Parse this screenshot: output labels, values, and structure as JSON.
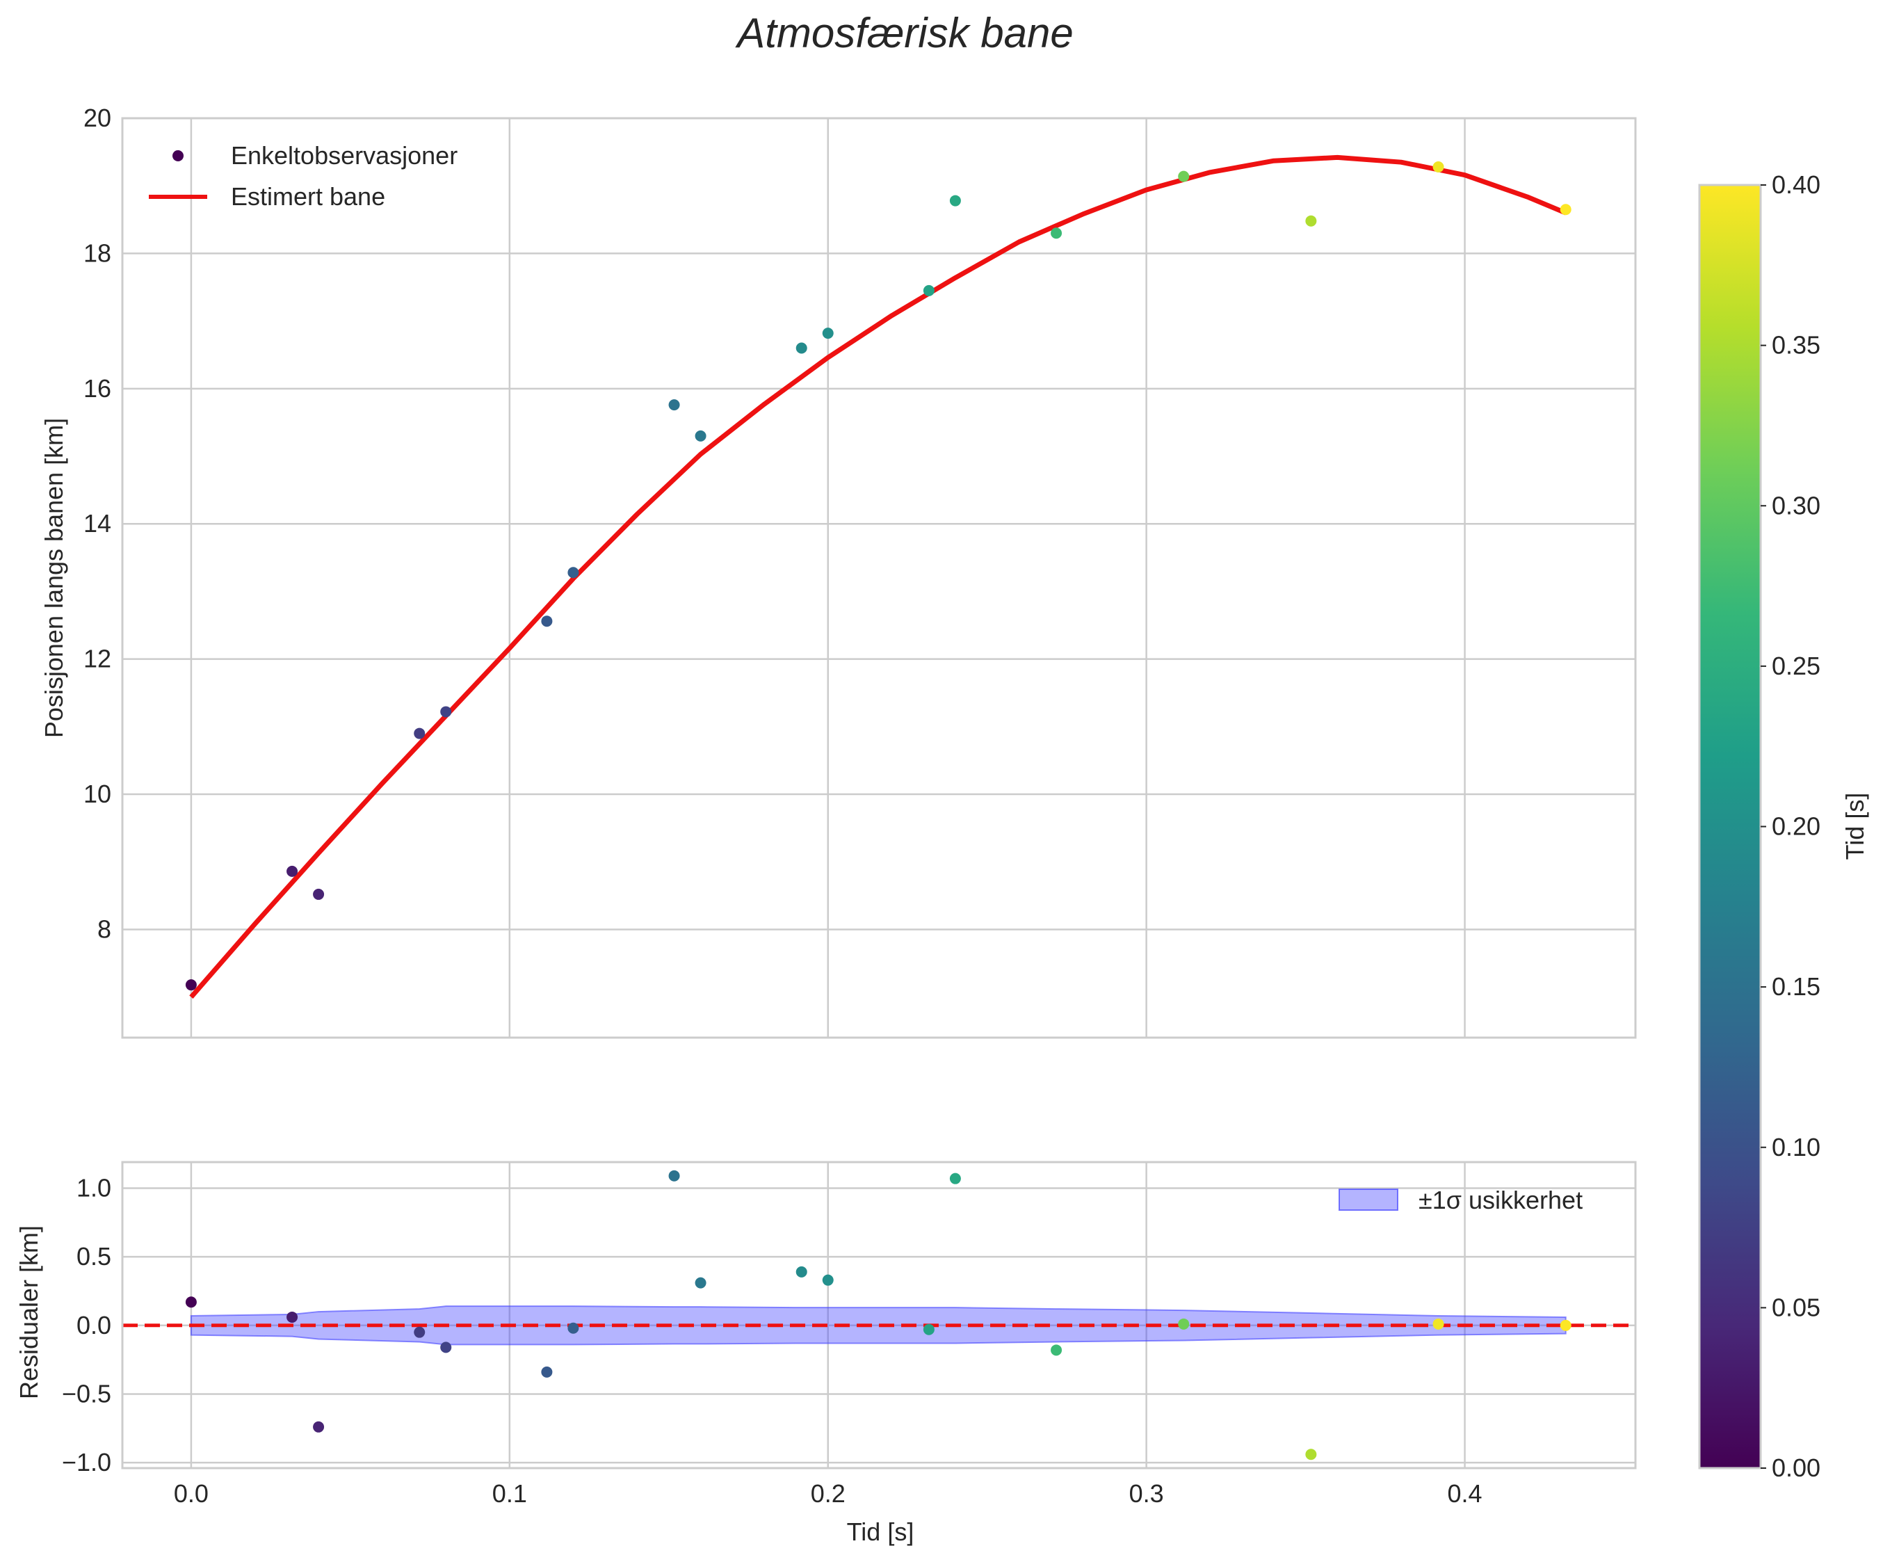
{
  "title": "Atmosfærisk bane",
  "chart_data": [
    {
      "type": "scatter",
      "panel": "main",
      "xlabel": "",
      "ylabel": "Posisjonen langs banen [km]",
      "xlim": [
        -0.0216,
        0.4536
      ],
      "ylim": [
        6.4,
        20.0
      ],
      "yticks": [
        8,
        10,
        12,
        14,
        16,
        18,
        20
      ],
      "ytick_labels": [
        "8",
        "10",
        "12",
        "14",
        "16",
        "18",
        "20"
      ],
      "grid": true,
      "legend_position": "top-left",
      "series": [
        {
          "name": "Enkeltobservasjoner",
          "kind": "scatter",
          "colored_by": "Tid [s]",
          "x": [
            0.0,
            0.0317,
            0.04,
            0.0717,
            0.08,
            0.1117,
            0.12,
            0.1517,
            0.16,
            0.1917,
            0.2,
            0.2317,
            0.24,
            0.2717,
            0.3117,
            0.3517,
            0.3917,
            0.4317
          ],
          "y": [
            7.18,
            8.86,
            8.52,
            10.9,
            11.22,
            12.56,
            13.28,
            15.76,
            15.3,
            16.6,
            16.82,
            17.45,
            18.78,
            18.3,
            19.14,
            18.48,
            19.28,
            18.65
          ]
        },
        {
          "name": "Estimert bane",
          "kind": "line",
          "color": "#ee1111",
          "x": [
            0.0,
            0.02,
            0.04,
            0.06,
            0.08,
            0.1,
            0.12,
            0.14,
            0.16,
            0.18,
            0.2,
            0.22,
            0.24,
            0.26,
            0.28,
            0.3,
            0.32,
            0.34,
            0.36,
            0.38,
            0.4,
            0.42,
            0.4317
          ],
          "y": [
            7.0,
            8.08,
            9.13,
            10.16,
            11.16,
            12.16,
            13.19,
            14.14,
            15.03,
            15.77,
            16.46,
            17.08,
            17.64,
            18.17,
            18.58,
            18.94,
            19.2,
            19.37,
            19.42,
            19.35,
            19.16,
            18.83,
            18.6
          ]
        }
      ]
    },
    {
      "type": "scatter",
      "panel": "residuals",
      "xlabel": "Tid [s]",
      "ylabel": "Residualer [km]",
      "xlim": [
        -0.0216,
        0.4536
      ],
      "ylim": [
        -1.04,
        1.19
      ],
      "xticks": [
        0.0,
        0.1,
        0.2,
        0.3,
        0.4
      ],
      "xtick_labels": [
        "0.0",
        "0.1",
        "0.2",
        "0.3",
        "0.4"
      ],
      "yticks": [
        -1.0,
        -0.5,
        0.0,
        0.5,
        1.0
      ],
      "ytick_labels": [
        "−1.0",
        "−0.5",
        "0.0",
        "0.5",
        "1.0"
      ],
      "grid": true,
      "legend_position": "top-right",
      "series": [
        {
          "name": "",
          "kind": "scatter",
          "colored_by": "Tid [s]",
          "x": [
            0.0,
            0.0317,
            0.04,
            0.0717,
            0.08,
            0.1117,
            0.12,
            0.1517,
            0.16,
            0.1917,
            0.2,
            0.2317,
            0.24,
            0.2717,
            0.3117,
            0.3517,
            0.3917,
            0.4317
          ],
          "y": [
            0.17,
            0.06,
            -0.74,
            -0.05,
            -0.16,
            -0.34,
            -0.02,
            1.09,
            0.31,
            0.39,
            0.33,
            -0.03,
            1.07,
            -0.18,
            0.01,
            -0.94,
            0.01,
            0.0
          ]
        },
        {
          "name": "±1σ usikkerhet",
          "kind": "band",
          "color": "#4444ff",
          "x": [
            0.0,
            0.0317,
            0.04,
            0.0717,
            0.08,
            0.1117,
            0.12,
            0.1517,
            0.16,
            0.1917,
            0.2,
            0.2317,
            0.24,
            0.2717,
            0.3117,
            0.3517,
            0.3917,
            0.4317
          ],
          "half_width": [
            0.07,
            0.08,
            0.1,
            0.12,
            0.14,
            0.14,
            0.14,
            0.135,
            0.135,
            0.13,
            0.13,
            0.13,
            0.13,
            0.12,
            0.11,
            0.09,
            0.07,
            0.06
          ]
        },
        {
          "name": "",
          "kind": "reference_line",
          "color": "#ee1111",
          "y": 0.0
        }
      ]
    },
    {
      "type": "colorbar",
      "label": "Tid [s]",
      "colormap": "viridis",
      "range": [
        0.0,
        0.4
      ],
      "ticks": [
        0.0,
        0.05,
        0.1,
        0.15,
        0.2,
        0.25,
        0.3,
        0.35,
        0.4
      ],
      "tick_labels": [
        "0.00",
        "0.05",
        "0.10",
        "0.15",
        "0.20",
        "0.25",
        "0.30",
        "0.35",
        "0.40"
      ],
      "stops": [
        "#440154",
        "#482878",
        "#3e4a89",
        "#31688e",
        "#26828e",
        "#1f9e89",
        "#35b779",
        "#6ece58",
        "#b5de2b",
        "#fde725"
      ]
    }
  ]
}
